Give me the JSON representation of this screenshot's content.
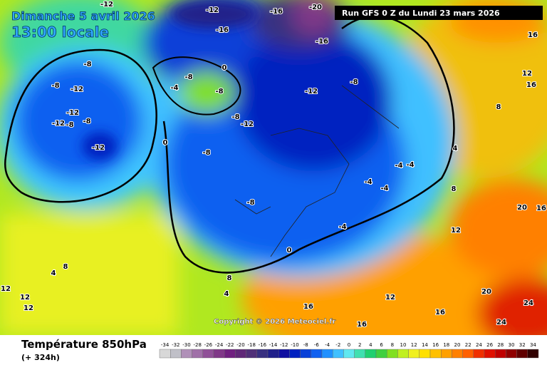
{
  "header": {
    "date": "Dimanche 5 avril 2026",
    "time": "13:00 locale",
    "run": "Run GFS 0 Z du Lundi 23 mars 2026"
  },
  "copyright": "Copyright © 2026 Meteociel.fr",
  "legend": {
    "title": "Température 850hPa",
    "subtitle": "(+ 324h)",
    "ticks": [
      -34,
      -32,
      -30,
      -28,
      -26,
      -24,
      -22,
      -20,
      -18,
      -16,
      -14,
      -12,
      -10,
      -8,
      -6,
      -4,
      -2,
      0,
      2,
      4,
      6,
      8,
      10,
      12,
      14,
      16,
      18,
      20,
      22,
      24,
      26,
      28,
      30,
      32,
      34
    ],
    "colors": [
      "#d8d8d8",
      "#c0c0c8",
      "#b090b8",
      "#a070a8",
      "#905098",
      "#803888",
      "#702080",
      "#602878",
      "#503078",
      "#383080",
      "#20208a",
      "#1010a0",
      "#0020c0",
      "#0840d8",
      "#1060f0",
      "#2090ff",
      "#40c0ff",
      "#60e8f0",
      "#40e0b0",
      "#20d070",
      "#40d040",
      "#80e020",
      "#c0f020",
      "#f0f020",
      "#ffe000",
      "#ffc000",
      "#ffa000",
      "#ff8000",
      "#ff6000",
      "#f03000",
      "#e01000",
      "#c00000",
      "#900000",
      "#600000",
      "#300000"
    ]
  },
  "map": {
    "labels": [
      "-12",
      "-16",
      "-20",
      "-12",
      "-16",
      "-16",
      "-8",
      "-12",
      "-8",
      "-12",
      "-12",
      "-8",
      "-8",
      "-12",
      "-8",
      "-4",
      "0",
      "-8",
      "-12",
      "-8",
      "-12",
      "-8",
      "-8",
      "0",
      "-8",
      "-4",
      "-4",
      "-4",
      "-4",
      "-4",
      "0",
      "4",
      "8",
      "4",
      "8",
      "12",
      "12",
      "12",
      "16",
      "16",
      "12",
      "16",
      "20",
      "24",
      "24",
      "16",
      "12",
      "16",
      "8",
      "4",
      "8",
      "20",
      "16",
      "12"
    ]
  }
}
